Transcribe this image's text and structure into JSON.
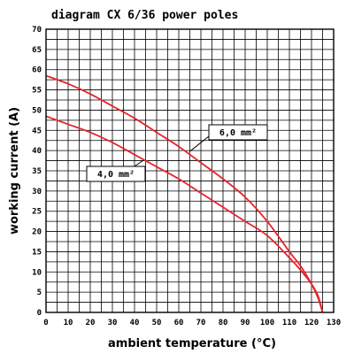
{
  "chart_data": {
    "type": "line",
    "title": "diagram CX 6/36 power poles",
    "xlabel": "ambient temperature (°C)",
    "ylabel": "working current (A)",
    "xlim": [
      0,
      130
    ],
    "ylim": [
      0,
      70
    ],
    "x_ticks": [
      "0",
      "10",
      "20",
      "30",
      "40",
      "50",
      "60",
      "70",
      "80",
      "90",
      "100",
      "110",
      "120",
      "130"
    ],
    "y_ticks": [
      "0",
      "5",
      "10",
      "15",
      "20",
      "25",
      "30",
      "35",
      "40",
      "45",
      "50",
      "55",
      "60",
      "65",
      "70"
    ],
    "grid": true,
    "series": [
      {
        "name": "6,0 mm²",
        "color": "#e8232a",
        "x": [
          0,
          10,
          20,
          30,
          40,
          50,
          60,
          70,
          80,
          90,
          100,
          110,
          115,
          120,
          123,
          125
        ],
        "y": [
          58.5,
          56.5,
          54,
          51,
          48,
          44.5,
          41,
          37,
          33,
          28.5,
          22.5,
          15,
          11.5,
          7,
          3.5,
          0
        ]
      },
      {
        "name": "4,0 mm²",
        "color": "#e8232a",
        "x": [
          0,
          10,
          20,
          30,
          40,
          50,
          60,
          70,
          80,
          90,
          100,
          110,
          115,
          120,
          123,
          125
        ],
        "y": [
          48.5,
          46.5,
          44.5,
          42,
          39,
          36,
          33,
          29.5,
          26,
          22.5,
          19,
          13.5,
          10.5,
          7,
          4,
          0
        ]
      }
    ]
  }
}
